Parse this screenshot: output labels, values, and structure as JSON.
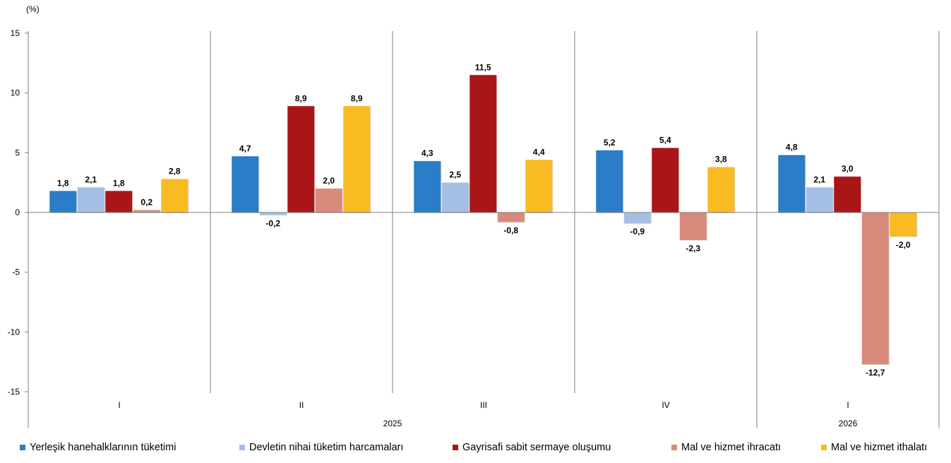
{
  "chart_data": {
    "type": "bar",
    "ylabel": "(%)",
    "ylim": [
      -15,
      15
    ],
    "yticks": [
      15,
      10,
      5,
      0,
      -5,
      -10,
      -15
    ],
    "categories": [
      "I",
      "II",
      "III",
      "IV",
      "I"
    ],
    "years": [
      {
        "label": "2025",
        "quarters": 4
      },
      {
        "label": "2026",
        "quarters": 1
      }
    ],
    "series": [
      {
        "name": "Yerleşik hanehalklarının tüketimi",
        "color": "#2A7DC6",
        "values": [
          1.8,
          4.7,
          4.3,
          5.2,
          4.8
        ],
        "labels": [
          "1,8",
          "4,7",
          "4,3",
          "5,2",
          "4,8"
        ]
      },
      {
        "name": "Devletin nihai tüketim harcamaları",
        "color": "#A5BFE4",
        "values": [
          2.1,
          -0.2,
          2.5,
          -0.9,
          2.1
        ],
        "labels": [
          "2,1",
          "-0,2",
          "2,5",
          "-0,9",
          "2,1"
        ]
      },
      {
        "name": "Gayrisafi sabit sermaye oluşumu",
        "color": "#AA1618",
        "values": [
          1.8,
          8.9,
          11.5,
          5.4,
          3.0
        ],
        "labels": [
          "1,8",
          "8,9",
          "11,5",
          "5,4",
          "3,0"
        ]
      },
      {
        "name": "Mal ve hizmet ihracatı",
        "color": "#D98A7B",
        "values": [
          0.2,
          2.0,
          -0.8,
          -2.3,
          -12.7
        ],
        "labels": [
          "0,2",
          "2,0",
          "-0,8",
          "-2,3",
          "-12,7"
        ]
      },
      {
        "name": "Mal ve hizmet ithalatı",
        "color": "#F9BB22",
        "values": [
          2.8,
          8.9,
          4.4,
          3.8,
          -2.0
        ],
        "labels": [
          "2,8",
          "8,9",
          "4,4",
          "3,8",
          "-2,0"
        ]
      }
    ],
    "grid": false,
    "legend_position": "bottom"
  }
}
